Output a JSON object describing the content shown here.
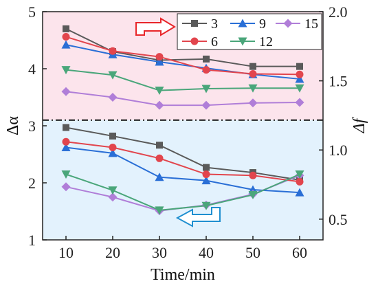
{
  "chart_data": {
    "type": "line",
    "xlabel": "Time/min",
    "ylabel_left": "Δα",
    "ylabel_right": "Δf",
    "x": [
      10,
      20,
      30,
      40,
      50,
      60
    ],
    "x_ticks": [
      "10",
      "20",
      "30",
      "40",
      "50",
      "60"
    ],
    "xlim": [
      5,
      65
    ],
    "ylim_left": [
      1,
      5
    ],
    "y_ticks_left": [
      "1",
      "2",
      "3",
      "4",
      "5"
    ],
    "ylim_right": [
      0.35,
      2.0
    ],
    "y_ticks_right": [
      "0.5",
      "1.0",
      "1.5",
      "2.0"
    ],
    "divider_y_left": 3.1,
    "top_region_color": "#fce4ec",
    "bottom_region_color": "#e3f2fd",
    "top_arrow_color": "#e8262a",
    "bottom_arrow_color": "#1f8fd0",
    "grid": false,
    "legend_position": "top-right",
    "series_group_top": [
      {
        "name": "3",
        "color": "#5a5a5a",
        "marker": "square",
        "values": [
          4.7,
          4.3,
          4.15,
          4.17,
          4.04,
          4.04
        ]
      },
      {
        "name": "9",
        "color": "#2a6fd6",
        "marker": "triangle",
        "values": [
          4.42,
          4.25,
          4.12,
          4.01,
          3.9,
          3.82
        ]
      },
      {
        "name": "15",
        "color": "#b07ed8",
        "marker": "diamond",
        "values": [
          3.6,
          3.5,
          3.36,
          3.36,
          3.4,
          3.41
        ]
      },
      {
        "name": "6",
        "color": "#e2454d",
        "marker": "circle",
        "values": [
          4.56,
          4.31,
          4.21,
          3.98,
          3.91,
          3.9
        ]
      },
      {
        "name": "12",
        "color": "#4aa67a",
        "marker": "triangle-down",
        "values": [
          3.98,
          3.89,
          3.62,
          3.65,
          3.66,
          3.66
        ]
      }
    ],
    "series_group_bottom": [
      {
        "name": "3",
        "color": "#5a5a5a",
        "marker": "square",
        "values": [
          2.97,
          2.82,
          2.66,
          2.27,
          2.18,
          2.05
        ]
      },
      {
        "name": "9",
        "color": "#2a6fd6",
        "marker": "triangle",
        "values": [
          2.62,
          2.52,
          2.1,
          2.04,
          1.88,
          1.83
        ]
      },
      {
        "name": "15",
        "color": "#b07ed8",
        "marker": "diamond",
        "values": [
          1.93,
          1.75,
          1.51,
          1.61,
          1.8,
          2.13
        ]
      },
      {
        "name": "6",
        "color": "#e2454d",
        "marker": "circle",
        "values": [
          2.72,
          2.62,
          2.43,
          2.15,
          2.13,
          2.02
        ]
      },
      {
        "name": "12",
        "color": "#4aa67a",
        "marker": "triangle-down",
        "values": [
          2.15,
          1.87,
          1.52,
          1.6,
          1.79,
          2.15
        ]
      }
    ],
    "legend": [
      {
        "name": "3",
        "color": "#5a5a5a",
        "marker": "square"
      },
      {
        "name": "9",
        "color": "#2a6fd6",
        "marker": "triangle"
      },
      {
        "name": "15",
        "color": "#b07ed8",
        "marker": "diamond"
      },
      {
        "name": "6",
        "color": "#e2454d",
        "marker": "circle"
      },
      {
        "name": "12",
        "color": "#4aa67a",
        "marker": "triangle-down"
      }
    ]
  }
}
